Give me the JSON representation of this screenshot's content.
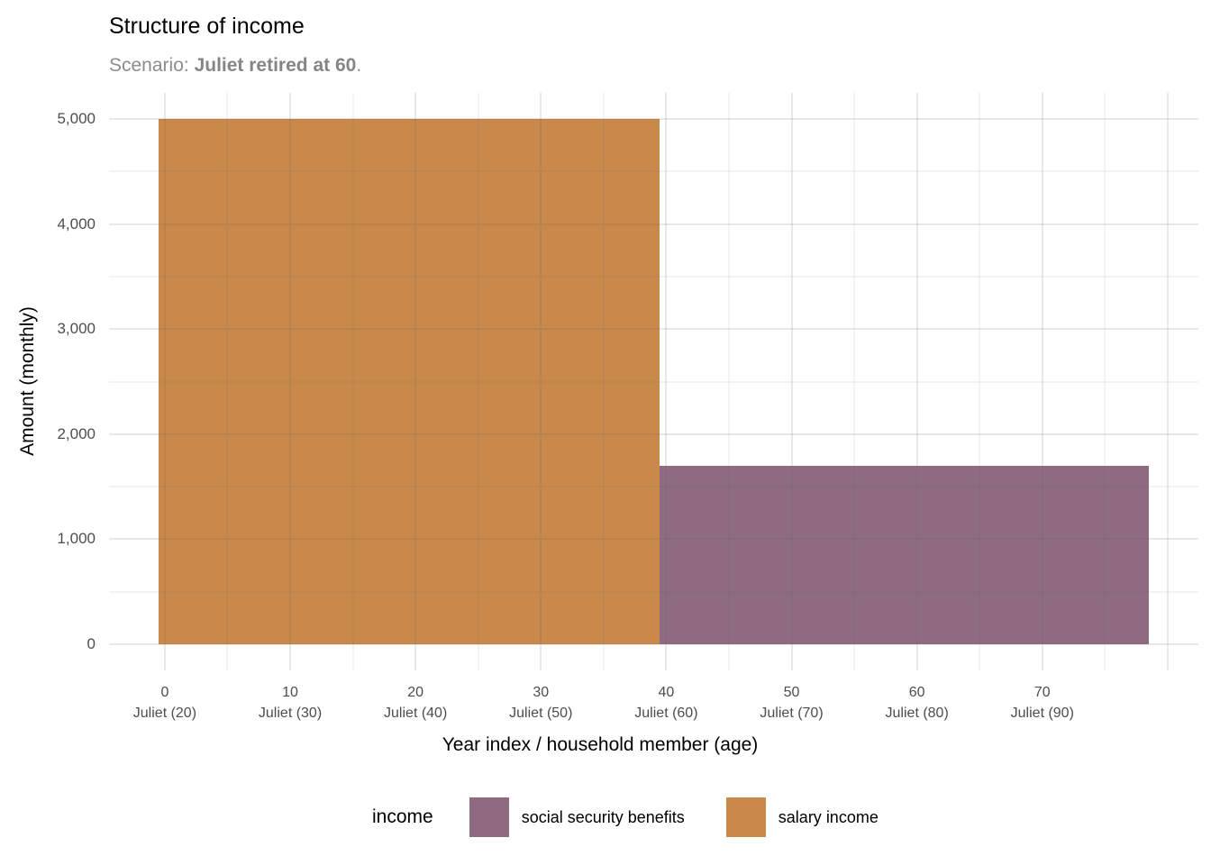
{
  "header": {
    "title": "Structure of income",
    "subtitle_prefix": "Scenario: ",
    "subtitle_bold": "Juliet retired at 60",
    "subtitle_suffix": "."
  },
  "chart_data": {
    "type": "area",
    "title": "Structure of income",
    "subtitle": "Scenario: Juliet retired at 60.",
    "xlabel": "Year index / household member (age)",
    "ylabel": "Amount (monthly)",
    "xlim": [
      -4.45,
      82.45
    ],
    "ylim": [
      -250,
      5250
    ],
    "grid": true,
    "x_major_breaks": [
      0,
      10,
      20,
      30,
      40,
      50,
      60,
      70,
      80
    ],
    "x_minor_breaks": [
      5,
      15,
      25,
      35,
      45,
      55,
      65,
      75
    ],
    "y_major_breaks": [
      0,
      1000,
      2000,
      3000,
      4000,
      5000
    ],
    "y_minor_breaks": [
      500,
      1500,
      2500,
      3500,
      4500
    ],
    "y_ticks": [
      {
        "v": 0,
        "label": "0"
      },
      {
        "v": 1000,
        "label": "1,000"
      },
      {
        "v": 2000,
        "label": "2,000"
      },
      {
        "v": 3000,
        "label": "3,000"
      },
      {
        "v": 4000,
        "label": "4,000"
      },
      {
        "v": 5000,
        "label": "5,000"
      }
    ],
    "x_ticks": [
      {
        "v": 0,
        "line1": "0",
        "line2": "Juliet (20)"
      },
      {
        "v": 10,
        "line1": "10",
        "line2": "Juliet (30)"
      },
      {
        "v": 20,
        "line1": "20",
        "line2": "Juliet (40)"
      },
      {
        "v": 30,
        "line1": "30",
        "line2": "Juliet (50)"
      },
      {
        "v": 40,
        "line1": "40",
        "line2": "Juliet (60)"
      },
      {
        "v": 50,
        "line1": "50",
        "line2": "Juliet (70)"
      },
      {
        "v": 60,
        "line1": "60",
        "line2": "Juliet (80)"
      },
      {
        "v": 70,
        "line1": "70",
        "line2": "Juliet (90)"
      }
    ],
    "series": [
      {
        "name": "salary income",
        "color": "#C8894B",
        "x_start": -0.5,
        "x_end": 39.5,
        "value": 5000
      },
      {
        "name": "social security benefits",
        "color": "#8E6B80",
        "x_start": 39.5,
        "x_end": 78.5,
        "value": 1700
      }
    ],
    "legend": {
      "title": "income",
      "position": "bottom",
      "items": [
        {
          "label": "social security benefits",
          "color": "#8E6B80"
        },
        {
          "label": "salary income",
          "color": "#C8894B"
        }
      ]
    }
  },
  "colors": {
    "salary_income": "#C8894B",
    "social_security": "#8E6B80",
    "gridline": "#EBEBEB",
    "tick_label": "#4D4D4D",
    "subtitle": "#8C8C8C",
    "title": "#000000"
  }
}
